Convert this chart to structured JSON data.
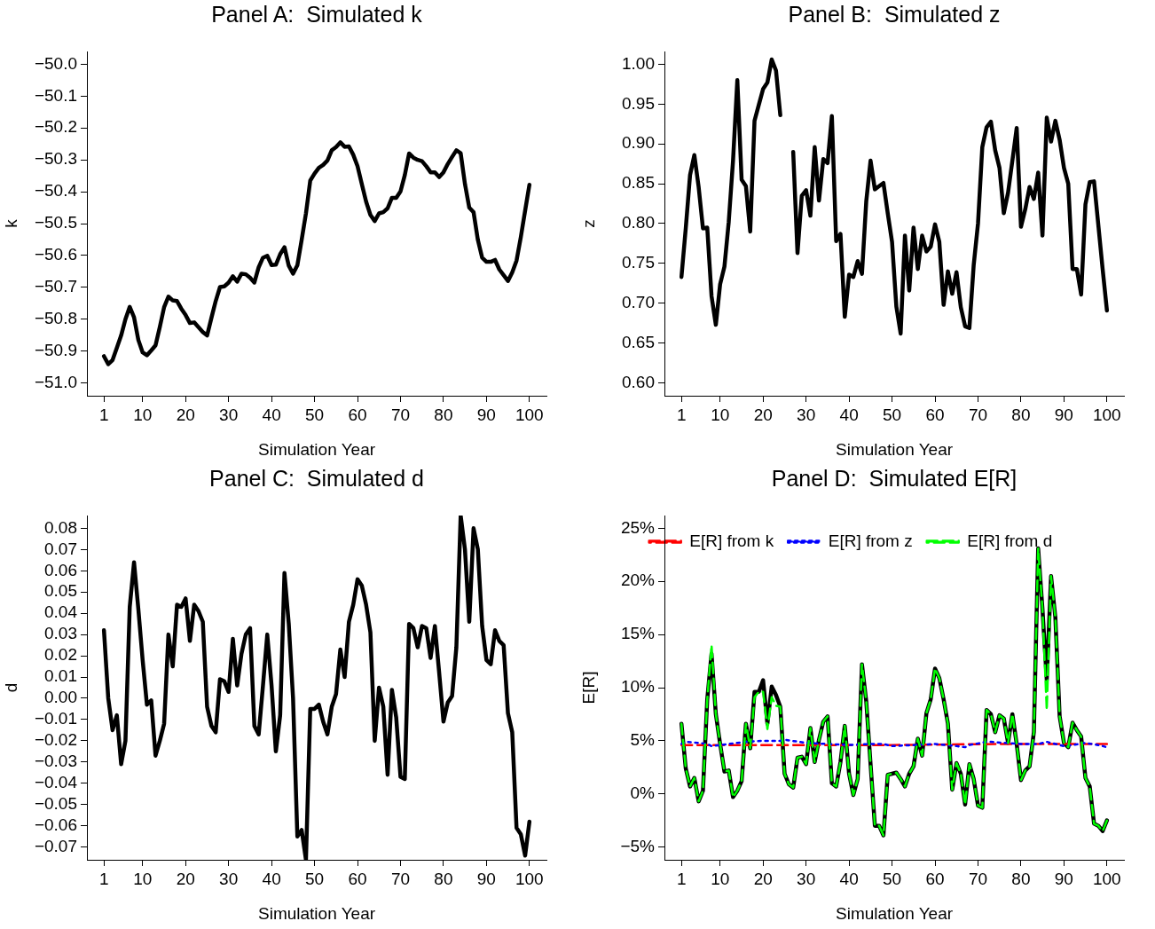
{
  "chart_data": [
    {
      "type": "line",
      "title": "Panel A:  Simulated k",
      "xlabel": "Simulation Year",
      "ylabel": "k",
      "x": [
        1,
        2,
        3,
        4,
        5,
        6,
        7,
        8,
        9,
        10,
        11,
        12,
        13,
        14,
        15,
        16,
        17,
        18,
        19,
        20,
        21,
        22,
        23,
        24,
        25,
        26,
        27,
        28,
        29,
        30,
        31,
        32,
        33,
        34,
        35,
        36,
        37,
        38,
        39,
        40,
        41,
        42,
        43,
        44,
        45,
        46,
        47,
        48,
        49,
        50,
        51,
        52,
        53,
        54,
        55,
        56,
        57,
        58,
        59,
        60,
        61,
        62,
        63,
        64,
        65,
        66,
        67,
        68,
        69,
        70,
        71,
        72,
        73,
        74,
        75,
        76,
        77,
        78,
        79,
        80,
        81,
        82,
        83,
        84,
        85,
        86,
        87,
        88,
        89,
        90,
        91,
        92,
        93,
        94,
        95,
        96,
        97,
        98,
        99,
        100
      ],
      "xlim": [
        -2.96,
        103.96
      ],
      "xticks": [
        1,
        10,
        20,
        30,
        40,
        50,
        60,
        70,
        80,
        90,
        100
      ],
      "ylim": [
        -51.04,
        -49.96
      ],
      "yticks": [
        {
          "value": -51,
          "label": "−51.0"
        },
        {
          "value": -50.9,
          "label": "−50.9"
        },
        {
          "value": -50.8,
          "label": "−50.8"
        },
        {
          "value": -50.7,
          "label": "−50.7"
        },
        {
          "value": -50.6,
          "label": "−50.6"
        },
        {
          "value": -50.5,
          "label": "−50.5"
        },
        {
          "value": -50.4,
          "label": "−50.4"
        },
        {
          "value": -50.3,
          "label": "−50.3"
        },
        {
          "value": -50.2,
          "label": "−50.2"
        },
        {
          "value": -50.1,
          "label": "−50.1"
        },
        {
          "value": -50,
          "label": "−50.0"
        }
      ],
      "series": [
        {
          "color": "#000000",
          "values": [
            -50.916,
            -50.941,
            -50.928,
            -50.89,
            -50.851,
            -50.8,
            -50.761,
            -50.794,
            -50.865,
            -50.904,
            -50.913,
            -50.898,
            -50.882,
            -50.824,
            -50.762,
            -50.729,
            -50.741,
            -50.743,
            -50.767,
            -50.787,
            -50.812,
            -50.81,
            -50.825,
            -50.84,
            -50.851,
            -50.796,
            -50.743,
            -50.699,
            -50.697,
            -50.685,
            -50.665,
            -50.682,
            -50.657,
            -50.659,
            -50.67,
            -50.685,
            -50.637,
            -50.607,
            -50.601,
            -50.63,
            -50.629,
            -50.596,
            -50.574,
            -50.632,
            -50.657,
            -50.631,
            -50.551,
            -50.468,
            -50.365,
            -50.343,
            -50.325,
            -50.316,
            -50.302,
            -50.27,
            -50.26,
            -50.245,
            -50.259,
            -50.258,
            -50.284,
            -50.32,
            -50.376,
            -50.431,
            -50.473,
            -50.492,
            -50.468,
            -50.464,
            -50.452,
            -50.419,
            -50.419,
            -50.399,
            -50.348,
            -50.28,
            -50.293,
            -50.3,
            -50.304,
            -50.32,
            -50.339,
            -50.339,
            -50.354,
            -50.339,
            -50.313,
            -50.291,
            -50.27,
            -50.279,
            -50.376,
            -50.45,
            -50.464,
            -50.551,
            -50.607,
            -50.62,
            -50.62,
            -50.614,
            -50.644,
            -50.662,
            -50.68,
            -50.653,
            -50.616,
            -50.542,
            -50.459,
            -50.378
          ]
        }
      ]
    },
    {
      "type": "line",
      "title": "Panel B:  Simulated z",
      "xlabel": "Simulation Year",
      "ylabel": "z",
      "x": [
        1,
        2,
        3,
        4,
        5,
        6,
        7,
        8,
        9,
        10,
        11,
        12,
        13,
        14,
        15,
        16,
        17,
        18,
        19,
        20,
        21,
        22,
        23,
        24,
        25,
        26,
        27,
        28,
        29,
        30,
        31,
        32,
        33,
        34,
        35,
        36,
        37,
        38,
        39,
        40,
        41,
        42,
        43,
        44,
        45,
        46,
        47,
        48,
        49,
        50,
        51,
        52,
        53,
        54,
        55,
        56,
        57,
        58,
        59,
        60,
        61,
        62,
        63,
        64,
        65,
        66,
        67,
        68,
        69,
        70,
        71,
        72,
        73,
        74,
        75,
        76,
        77,
        78,
        79,
        80,
        81,
        82,
        83,
        84,
        85,
        86,
        87,
        88,
        89,
        90,
        91,
        92,
        93,
        94,
        95,
        96,
        97,
        98,
        99,
        100
      ],
      "xlim": [
        -2.96,
        103.96
      ],
      "xticks": [
        1,
        10,
        20,
        30,
        40,
        50,
        60,
        70,
        80,
        90,
        100
      ],
      "ylim": [
        0.584,
        1.016
      ],
      "yticks": [
        {
          "value": 0.6,
          "label": "0.60"
        },
        {
          "value": 0.65,
          "label": "0.65"
        },
        {
          "value": 0.7,
          "label": "0.70"
        },
        {
          "value": 0.75,
          "label": "0.75"
        },
        {
          "value": 0.8,
          "label": "0.80"
        },
        {
          "value": 0.85,
          "label": "0.85"
        },
        {
          "value": 0.9,
          "label": "0.90"
        },
        {
          "value": 0.95,
          "label": "0.95"
        },
        {
          "value": 1,
          "label": "1.00"
        }
      ],
      "series": [
        {
          "color": "#000000",
          "values": [
            0.733,
            0.794,
            0.861,
            0.886,
            0.846,
            0.794,
            0.795,
            0.709,
            0.673,
            0.724,
            0.746,
            0.802,
            0.879,
            0.98,
            0.855,
            0.847,
            0.79,
            0.929,
            0.949,
            0.969,
            0.977,
            1.006,
            0.992,
            0.936,
            null,
            null,
            0.89,
            0.763,
            0.835,
            0.842,
            0.81,
            0.896,
            0.829,
            0.881,
            0.876,
            0.935,
            0.778,
            0.787,
            0.683,
            0.736,
            0.733,
            0.753,
            0.737,
            0.828,
            0.879,
            0.843,
            0.847,
            0.851,
            0.813,
            0.777,
            0.696,
            0.662,
            0.785,
            0.716,
            0.795,
            0.743,
            0.785,
            0.765,
            0.771,
            0.799,
            0.777,
            0.698,
            0.74,
            0.712,
            0.739,
            0.695,
            0.671,
            0.669,
            0.748,
            0.8,
            0.896,
            0.921,
            0.928,
            0.892,
            0.87,
            0.813,
            0.839,
            0.879,
            0.92,
            0.796,
            0.818,
            0.846,
            0.831,
            0.864,
            0.785,
            0.933,
            0.903,
            0.929,
            0.905,
            0.87,
            0.85,
            0.743,
            0.743,
            0.711,
            0.824,
            0.852,
            0.853,
            0.798,
            0.743,
            0.691
          ]
        }
      ]
    },
    {
      "type": "line",
      "title": "Panel C:  Simulated d",
      "xlabel": "Simulation Year",
      "ylabel": "d",
      "x": [
        1,
        2,
        3,
        4,
        5,
        6,
        7,
        8,
        9,
        10,
        11,
        12,
        13,
        14,
        15,
        16,
        17,
        18,
        19,
        20,
        21,
        22,
        23,
        24,
        25,
        26,
        27,
        28,
        29,
        30,
        31,
        32,
        33,
        34,
        35,
        36,
        37,
        38,
        39,
        40,
        41,
        42,
        43,
        44,
        45,
        46,
        47,
        48,
        49,
        50,
        51,
        52,
        53,
        54,
        55,
        56,
        57,
        58,
        59,
        60,
        61,
        62,
        63,
        64,
        65,
        66,
        67,
        68,
        69,
        70,
        71,
        72,
        73,
        74,
        75,
        76,
        77,
        78,
        79,
        80,
        81,
        82,
        83,
        84,
        85,
        86,
        87,
        88,
        89,
        90,
        91,
        92,
        93,
        94,
        95,
        96,
        97,
        98,
        99,
        100
      ],
      "xlim": [
        -2.96,
        103.96
      ],
      "xticks": [
        1,
        10,
        20,
        30,
        40,
        50,
        60,
        70,
        80,
        90,
        100
      ],
      "ylim": [
        -0.076,
        0.086
      ],
      "yticks": [
        {
          "value": -0.07,
          "label": "−0.07"
        },
        {
          "value": -0.06,
          "label": "−0.06"
        },
        {
          "value": -0.05,
          "label": "−0.05"
        },
        {
          "value": -0.04,
          "label": "−0.04"
        },
        {
          "value": -0.03,
          "label": "−0.03"
        },
        {
          "value": -0.02,
          "label": "−0.02"
        },
        {
          "value": -0.01,
          "label": "−0.01"
        },
        {
          "value": 0,
          "label": "0.00"
        },
        {
          "value": 0.01,
          "label": "0.01"
        },
        {
          "value": 0.02,
          "label": "0.02"
        },
        {
          "value": 0.03,
          "label": "0.03"
        },
        {
          "value": 0.04,
          "label": "0.04"
        },
        {
          "value": 0.05,
          "label": "0.05"
        },
        {
          "value": 0.06,
          "label": "0.06"
        },
        {
          "value": 0.07,
          "label": "0.07"
        },
        {
          "value": 0.08,
          "label": "0.08"
        }
      ],
      "series": [
        {
          "color": "#000000",
          "values": [
            0.032,
            0.0,
            -0.015,
            -0.008,
            -0.031,
            -0.02,
            0.043,
            0.064,
            0.042,
            0.018,
            -0.003,
            -0.001,
            -0.027,
            -0.02,
            -0.012,
            0.03,
            0.015,
            0.044,
            0.043,
            0.047,
            0.027,
            0.044,
            0.041,
            0.036,
            -0.004,
            -0.013,
            -0.016,
            0.009,
            0.008,
            0.003,
            0.028,
            0.006,
            0.021,
            0.03,
            0.033,
            -0.013,
            -0.017,
            0.006,
            0.03,
            0.006,
            -0.025,
            -0.008,
            0.059,
            0.035,
            0.0,
            -0.065,
            -0.062,
            -0.076,
            -0.005,
            -0.005,
            -0.003,
            -0.011,
            -0.017,
            -0.004,
            0.002,
            0.023,
            0.01,
            0.036,
            0.044,
            0.056,
            0.053,
            0.044,
            0.031,
            -0.02,
            0.005,
            -0.004,
            -0.036,
            0.004,
            -0.009,
            -0.037,
            -0.038,
            0.035,
            0.033,
            0.024,
            0.034,
            0.033,
            0.019,
            0.034,
            0.012,
            -0.011,
            -0.002,
            0.001,
            0.024,
            0.086,
            0.07,
            0.036,
            0.08,
            0.07,
            0.034,
            0.018,
            0.016,
            0.032,
            0.027,
            0.025,
            -0.007,
            -0.016,
            -0.061,
            -0.064,
            -0.074,
            -0.058
          ]
        }
      ]
    },
    {
      "type": "line",
      "title": "Panel D:  Simulated E[R]",
      "xlabel": "Simulation Year",
      "ylabel": "E[R]",
      "legend": "top",
      "x": [
        1,
        2,
        3,
        4,
        5,
        6,
        7,
        8,
        9,
        10,
        11,
        12,
        13,
        14,
        15,
        16,
        17,
        18,
        19,
        20,
        21,
        22,
        23,
        24,
        25,
        26,
        27,
        28,
        29,
        30,
        31,
        32,
        33,
        34,
        35,
        36,
        37,
        38,
        39,
        40,
        41,
        42,
        43,
        44,
        45,
        46,
        47,
        48,
        49,
        50,
        51,
        52,
        53,
        54,
        55,
        56,
        57,
        58,
        59,
        60,
        61,
        62,
        63,
        64,
        65,
        66,
        67,
        68,
        69,
        70,
        71,
        72,
        73,
        74,
        75,
        76,
        77,
        78,
        79,
        80,
        81,
        82,
        83,
        84,
        85,
        86,
        87,
        88,
        89,
        90,
        91,
        92,
        93,
        94,
        95,
        96,
        97,
        98,
        99,
        100
      ],
      "xlim": [
        -2.96,
        103.96
      ],
      "xticks": [
        1,
        10,
        20,
        30,
        40,
        50,
        60,
        70,
        80,
        90,
        100
      ],
      "ylim": [
        -6.2,
        26.2
      ],
      "yticks": [
        {
          "value": -5,
          "label": "−5%"
        },
        {
          "value": 0,
          "label": "0%"
        },
        {
          "value": 5,
          "label": "5%"
        },
        {
          "value": 10,
          "label": "10%"
        },
        {
          "value": 15,
          "label": "15%"
        },
        {
          "value": 20,
          "label": "20%"
        },
        {
          "value": 25,
          "label": "25%"
        }
      ],
      "series": [
        {
          "color": "#000000",
          "values": [
            6.6,
            2.4,
            0.7,
            1.5,
            -0.7,
            0.3,
            8.9,
            13.2,
            7.5,
            4.7,
            2.1,
            2.2,
            -0.3,
            0.3,
            1.2,
            6.6,
            4.3,
            9.6,
            9.6,
            10.7,
            6.6,
            10.1,
            9.3,
            8.2,
            1.9,
            0.9,
            0.6,
            3.4,
            3.5,
            2.8,
            6.2,
            3.0,
            5.1,
            6.8,
            7.3,
            1.0,
            0.7,
            3.0,
            6.4,
            1.9,
            -0.1,
            1.4,
            12.2,
            8.7,
            2.8,
            -3.0,
            -3.0,
            -3.9,
            1.8,
            1.9,
            2.0,
            1.4,
            0.7,
            1.9,
            2.6,
            5.2,
            3.6,
            7.6,
            8.9,
            11.8,
            10.9,
            8.9,
            6.6,
            0.4,
            2.9,
            1.9,
            -1.0,
            2.8,
            1.4,
            -1.1,
            -1.3,
            7.9,
            7.5,
            5.8,
            7.4,
            7.1,
            4.8,
            7.5,
            4.7,
            1.3,
            2.2,
            2.6,
            5.8,
            23.1,
            17.4,
            10.7,
            20.5,
            16.6,
            7.3,
            4.8,
            4.4,
            6.7,
            6.0,
            5.4,
            1.5,
            0.7,
            -2.8,
            -3.0,
            -3.5,
            -2.5
          ]
        },
        {
          "name": "E[R] from k",
          "color": "#ff0000",
          "line_style": "dashed",
          "x": [
            1,
            25,
            50,
            75,
            100
          ],
          "values": [
            4.6,
            4.6,
            4.6,
            4.7,
            4.7
          ]
        },
        {
          "name": "E[R] from z",
          "color": "#0000ff",
          "line_style": "dotted",
          "x": [
            1,
            2,
            5,
            7,
            8,
            10,
            14,
            16,
            20,
            24,
            25,
            30,
            35,
            40,
            45,
            48,
            50,
            55,
            60,
            65,
            67,
            68,
            72,
            73,
            76,
            80,
            84,
            86,
            88,
            90,
            92,
            95,
            98,
            100
          ],
          "values": [
            4.7,
            4.9,
            4.8,
            4.7,
            4.5,
            4.6,
            4.8,
            4.9,
            5.0,
            5.0,
            5.1,
            4.8,
            4.7,
            4.6,
            4.7,
            4.7,
            4.5,
            4.6,
            4.7,
            4.5,
            4.4,
            4.6,
            4.9,
            4.9,
            4.8,
            4.7,
            4.7,
            4.9,
            4.7,
            4.5,
            4.6,
            4.8,
            4.6,
            4.4
          ]
        },
        {
          "name": "E[R] from d",
          "color": "#00ff00",
          "line_style": "dashed",
          "values": [
            6.6,
            2.4,
            0.7,
            1.5,
            -0.7,
            0.3,
            8.9,
            14.0,
            7.5,
            4.7,
            2.1,
            2.2,
            -0.3,
            0.3,
            1.2,
            6.6,
            4.3,
            9.1,
            9.6,
            9.6,
            6.1,
            9.1,
            8.3,
            8.2,
            1.9,
            0.9,
            0.6,
            3.4,
            3.5,
            2.8,
            6.2,
            3.0,
            5.1,
            6.8,
            7.3,
            1.0,
            0.7,
            3.0,
            6.4,
            1.9,
            -0.1,
            1.4,
            12.2,
            8.7,
            2.8,
            -3.0,
            -3.0,
            -3.9,
            1.8,
            1.9,
            2.0,
            1.4,
            0.7,
            1.9,
            2.6,
            5.2,
            3.6,
            7.6,
            8.9,
            11.8,
            10.9,
            8.9,
            6.6,
            0.4,
            2.9,
            1.9,
            -1.0,
            2.8,
            1.4,
            -1.1,
            -1.3,
            7.9,
            7.5,
            5.8,
            7.4,
            7.1,
            4.8,
            7.5,
            4.7,
            1.3,
            2.2,
            2.6,
            5.8,
            23.1,
            17.4,
            7.9,
            20.5,
            16.6,
            7.3,
            4.8,
            4.4,
            6.7,
            6.0,
            5.4,
            1.5,
            0.7,
            -2.8,
            -3.0,
            -3.5,
            -2.5
          ]
        }
      ]
    }
  ]
}
